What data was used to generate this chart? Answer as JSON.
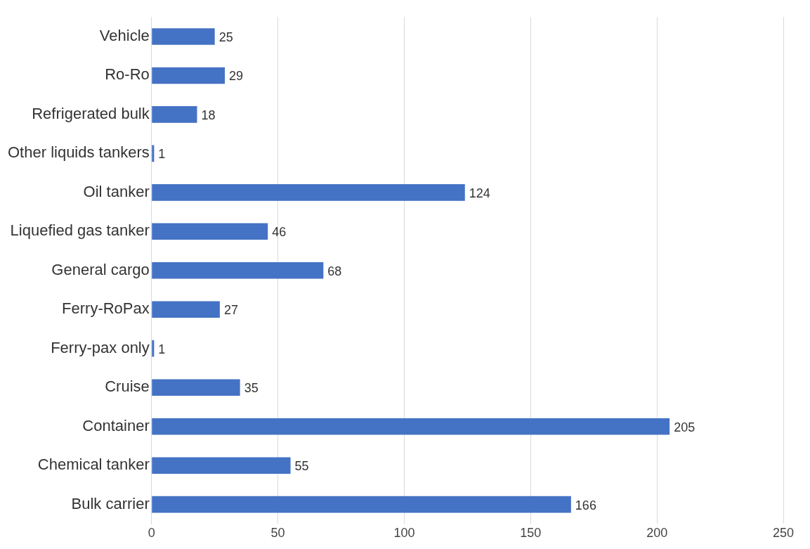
{
  "chart_data": {
    "type": "bar",
    "orientation": "horizontal",
    "categories": [
      "Vehicle",
      "Ro-Ro",
      "Refrigerated bulk",
      "Other liquids tankers",
      "Oil tanker",
      "Liquefied gas tanker",
      "General cargo",
      "Ferry-RoPax",
      "Ferry-pax only",
      "Cruise",
      "Container",
      "Chemical tanker",
      "Bulk carrier"
    ],
    "values": [
      25,
      29,
      18,
      1,
      124,
      46,
      68,
      27,
      1,
      35,
      205,
      55,
      166
    ],
    "color": "#4472c4",
    "xlim": [
      0,
      250
    ],
    "xticks": [
      0,
      50,
      100,
      150,
      200,
      250
    ],
    "grid": "x",
    "data_labels": true
  }
}
